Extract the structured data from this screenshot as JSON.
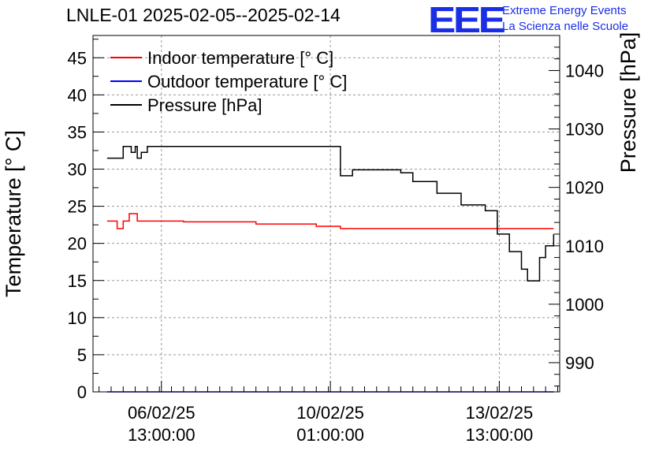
{
  "header": {
    "title": "LNLE-01 2025-02-05--2025-02-14",
    "logo": "EEE",
    "logo_line1": "Extreme Energy Events",
    "logo_line2": "La Scienza nelle Scuole",
    "logo_color": "#1a2ee6"
  },
  "chart_data": {
    "type": "line",
    "title": "LNLE-01 2025-02-05--2025-02-14",
    "ylabel": "Temperature [° C]",
    "y2label": "Pressure [hPa]",
    "ylim": [
      0,
      48
    ],
    "y2lim": [
      985,
      1046
    ],
    "yticks": [
      "0",
      "5",
      "10",
      "15",
      "20",
      "25",
      "30",
      "35",
      "40",
      "45"
    ],
    "y2ticks": [
      "990",
      "1000",
      "1010",
      "1020",
      "1030",
      "1040"
    ],
    "xticks": [
      {
        "date": "06/02/25",
        "time": "13:00:00",
        "x": "2025-02-06 13:00"
      },
      {
        "date": "10/02/25",
        "time": "01:00:00",
        "x": "2025-02-10 01:00"
      },
      {
        "date": "13/02/25",
        "time": "13:00:00",
        "x": "2025-02-13 13:00"
      }
    ],
    "xlim": [
      "2025-02-05 03:00",
      "2025-02-14 19:00"
    ],
    "grid": true,
    "legend_position": "top-left",
    "series": [
      {
        "name": "Indoor temperature [° C]",
        "color": "#ff0000",
        "axis": "left",
        "x": [
          "2025-02-05 10:00",
          "2025-02-05 14:00",
          "2025-02-05 15:00",
          "2025-02-05 17:00",
          "2025-02-05 18:00",
          "2025-02-05 21:00",
          "2025-02-06 00:00",
          "2025-02-06 01:00",
          "2025-02-06 06:00",
          "2025-02-07 00:00",
          "2025-02-08 12:00",
          "2025-02-09 18:00",
          "2025-02-10 06:00",
          "2025-02-11 12:00",
          "2025-02-12 18:00",
          "2025-02-13 12:00",
          "2025-02-14 06:00",
          "2025-02-14 16:00"
        ],
        "y": [
          23,
          23,
          22,
          22,
          23,
          24,
          24,
          23,
          23,
          22.9,
          22.6,
          22.3,
          22,
          22,
          22,
          22,
          22,
          22
        ]
      },
      {
        "name": "Outdoor temperature [° C]",
        "color": "#0000ff",
        "axis": "left",
        "x": [
          "2025-02-05 10:00",
          "2025-02-14 16:00"
        ],
        "y": [
          0,
          0
        ]
      },
      {
        "name": "Pressure [hPa]",
        "color": "#000000",
        "axis": "right",
        "x": [
          "2025-02-05 10:00",
          "2025-02-05 15:00",
          "2025-02-05 18:00",
          "2025-02-05 22:00",
          "2025-02-06 00:00",
          "2025-02-06 01:00",
          "2025-02-06 03:00",
          "2025-02-06 06:00",
          "2025-02-10 06:00",
          "2025-02-10 12:00",
          "2025-02-11 12:00",
          "2025-02-11 18:00",
          "2025-02-12 06:00",
          "2025-02-12 18:00",
          "2025-02-13 06:00",
          "2025-02-13 12:00",
          "2025-02-13 18:00",
          "2025-02-14 00:00",
          "2025-02-14 03:00",
          "2025-02-14 06:00",
          "2025-02-14 09:00",
          "2025-02-14 12:00",
          "2025-02-14 16:00"
        ],
        "y": [
          1025,
          1025,
          1027,
          1026,
          1027,
          1025,
          1026,
          1027,
          1022,
          1023,
          1022.5,
          1021,
          1019,
          1017,
          1016,
          1012,
          1009,
          1006,
          1004,
          1004,
          1008,
          1010,
          1012
        ]
      }
    ]
  }
}
